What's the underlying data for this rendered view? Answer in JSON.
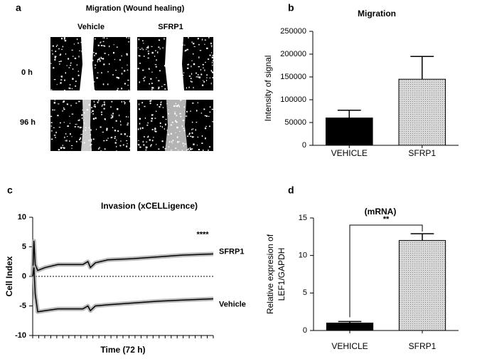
{
  "figure_a": {
    "label": "a",
    "title": "Migration (Wound healing)",
    "columns": [
      "Vehicle",
      "SFRP1"
    ],
    "rows": [
      "0 h",
      "96 h"
    ]
  },
  "chart_data": [
    {
      "label": "b",
      "type": "bar",
      "title": "Migration",
      "ylabel": "Intensity of signal",
      "categories": [
        "VEHICLE",
        "SFRP1"
      ],
      "values": [
        60000,
        145000
      ],
      "errors": [
        17000,
        50000
      ],
      "colors": [
        "#000000",
        "#d0d0d0"
      ],
      "ylim": [
        0,
        250000
      ],
      "yticks": [
        0,
        50000,
        100000,
        150000,
        200000,
        250000
      ]
    },
    {
      "label": "c",
      "type": "line",
      "title": "Invasion (xCELLigence)",
      "xlabel": "Time (72 h)",
      "ylabel": "Cell Index",
      "x": [
        0,
        0.5,
        1,
        2,
        5,
        10,
        15,
        20,
        22,
        23,
        25,
        30,
        40,
        50,
        60,
        72
      ],
      "xlim": [
        0,
        72
      ],
      "series": [
        {
          "name": "SFRP1",
          "color": "#000000",
          "values": [
            0,
            6,
            2,
            1,
            1.5,
            2,
            2,
            2,
            2.5,
            1.5,
            2.3,
            2.8,
            3,
            3.3,
            3.6,
            3.8
          ]
        },
        {
          "name": "Vehicle",
          "color": "#000000",
          "values": [
            0,
            1.5,
            -3,
            -6,
            -5.8,
            -5.5,
            -5.5,
            -5.5,
            -5,
            -5.8,
            -5,
            -4.8,
            -4.5,
            -4.2,
            -4,
            -3.8
          ]
        }
      ],
      "ylim": [
        -10,
        10
      ],
      "yticks": [
        -10,
        -5,
        0,
        5,
        10
      ],
      "hline": 0,
      "annotation": "****"
    },
    {
      "label": "d",
      "type": "bar",
      "title": "(mRNA)",
      "ylabel": [
        "Relative expresion of",
        "LEF1/GAPDH"
      ],
      "categories": [
        "VEHICLE",
        "SFRP1"
      ],
      "values": [
        1,
        12
      ],
      "errors": [
        0.2,
        0.9
      ],
      "colors": [
        "#000000",
        "#d0d0d0"
      ],
      "ylim": [
        0,
        15
      ],
      "yticks": [
        0,
        5,
        10,
        15
      ],
      "annotation": "**"
    }
  ]
}
